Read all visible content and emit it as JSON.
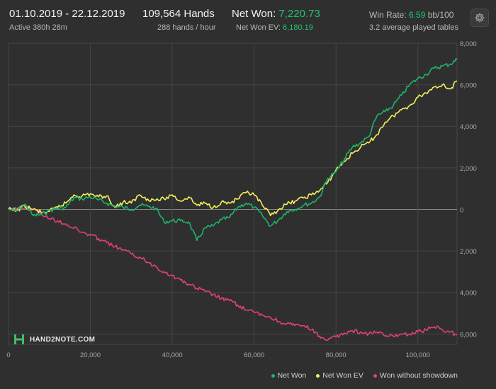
{
  "header": {
    "date_range": "01.10.2019 - 22.12.2019",
    "active": "Active 380h 28m",
    "hands": "109,564 Hands",
    "hands_rate": "288 hands / hour",
    "net_won_label": "Net Won: ",
    "net_won_value": "7,220.73",
    "net_won_ev_label": "Net Won  EV: ",
    "net_won_ev_value": "6,180.19",
    "win_rate_label": "Win Rate: ",
    "win_rate_value": "6.59",
    "win_rate_unit": " bb/100",
    "tables": "3.2 average played tables",
    "settings_icon": "gear-icon"
  },
  "logo": {
    "text": "HAND2NOTE.COM"
  },
  "colors": {
    "net_won": "#1fb36a",
    "net_won_ev": "#f4f05a",
    "won_without_showdown": "#e0407a",
    "accent": "#1fc46e"
  },
  "chart_data": {
    "type": "line",
    "title": "",
    "xlabel": "",
    "ylabel": "",
    "xlim": [
      0,
      109564
    ],
    "ylim": [
      -6500,
      8000
    ],
    "grid": true,
    "legend": "bottom-right",
    "x_ticks": [
      0,
      20000,
      40000,
      60000,
      80000,
      100000
    ],
    "x_tick_labels": [
      "0",
      "20,000",
      "40,000",
      "60,000",
      "80,000",
      "100,000"
    ],
    "y_ticks": [
      8000,
      6000,
      4000,
      2000,
      0,
      -2000,
      -4000,
      -6000
    ],
    "y_tick_labels": [
      "8,000",
      "6,000",
      "4,000",
      "2,000",
      "0",
      "2,000",
      "4,000",
      "6,000"
    ],
    "series": [
      {
        "name": "Net Won",
        "color": "#1fb36a",
        "x": [
          0,
          2000,
          4000,
          6000,
          8000,
          10000,
          12000,
          14000,
          16000,
          18000,
          20000,
          22000,
          24000,
          26000,
          28000,
          30000,
          32000,
          34000,
          36000,
          38000,
          40000,
          42000,
          44000,
          46000,
          48000,
          50000,
          52000,
          54000,
          56000,
          58000,
          60000,
          62000,
          64000,
          66000,
          68000,
          70000,
          72000,
          74000,
          76000,
          78000,
          80000,
          82000,
          84000,
          86000,
          88000,
          90000,
          92000,
          94000,
          96000,
          98000,
          100000,
          102000,
          104000,
          106000,
          108000,
          109564
        ],
        "y": [
          0,
          -80,
          250,
          -300,
          -250,
          -50,
          50,
          100,
          550,
          500,
          600,
          450,
          300,
          150,
          100,
          0,
          200,
          150,
          50,
          -600,
          -550,
          -550,
          -600,
          -1500,
          -900,
          -800,
          -500,
          -400,
          100,
          300,
          100,
          -300,
          -800,
          -500,
          -100,
          0,
          200,
          300,
          600,
          1500,
          1800,
          2400,
          3000,
          3200,
          3500,
          4500,
          4700,
          5000,
          5500,
          6000,
          6300,
          6500,
          6800,
          6900,
          7000,
          7220.73
        ]
      },
      {
        "name": "Net Won  EV",
        "color": "#f4f05a",
        "x": [
          0,
          2000,
          4000,
          6000,
          8000,
          10000,
          12000,
          14000,
          16000,
          18000,
          20000,
          22000,
          24000,
          26000,
          28000,
          30000,
          32000,
          34000,
          36000,
          38000,
          40000,
          42000,
          44000,
          46000,
          48000,
          50000,
          52000,
          54000,
          56000,
          58000,
          60000,
          62000,
          64000,
          66000,
          68000,
          70000,
          72000,
          74000,
          76000,
          78000,
          80000,
          82000,
          84000,
          86000,
          88000,
          90000,
          92000,
          94000,
          96000,
          98000,
          100000,
          102000,
          104000,
          106000,
          108000,
          109564
        ],
        "y": [
          0,
          -50,
          150,
          0,
          -150,
          -100,
          100,
          300,
          700,
          650,
          750,
          600,
          650,
          100,
          350,
          300,
          700,
          500,
          450,
          500,
          700,
          400,
          600,
          200,
          300,
          100,
          350,
          300,
          500,
          800,
          700,
          200,
          -300,
          0,
          250,
          400,
          550,
          700,
          900,
          1300,
          1900,
          2300,
          2700,
          3000,
          3200,
          3600,
          4200,
          4500,
          4800,
          5000,
          5400,
          5600,
          5900,
          6000,
          5800,
          6180.19
        ]
      },
      {
        "name": "Won without showdown",
        "color": "#e0407a",
        "x": [
          0,
          2000,
          4000,
          6000,
          8000,
          10000,
          12000,
          14000,
          16000,
          18000,
          20000,
          22000,
          24000,
          26000,
          28000,
          30000,
          32000,
          34000,
          36000,
          38000,
          40000,
          42000,
          44000,
          46000,
          48000,
          50000,
          52000,
          54000,
          56000,
          58000,
          60000,
          62000,
          64000,
          66000,
          68000,
          70000,
          72000,
          74000,
          76000,
          78000,
          80000,
          82000,
          84000,
          86000,
          88000,
          90000,
          92000,
          94000,
          96000,
          98000,
          100000,
          102000,
          104000,
          106000,
          108000,
          109564
        ],
        "y": [
          0,
          0,
          100,
          0,
          -200,
          -450,
          -550,
          -700,
          -900,
          -1100,
          -1250,
          -1400,
          -1600,
          -1800,
          -1950,
          -2150,
          -2300,
          -2550,
          -2750,
          -3000,
          -3200,
          -3400,
          -3600,
          -3800,
          -3950,
          -4100,
          -4300,
          -4400,
          -4600,
          -4850,
          -4950,
          -5100,
          -5200,
          -5400,
          -5500,
          -5600,
          -5600,
          -5800,
          -6100,
          -6300,
          -6150,
          -5950,
          -5850,
          -5900,
          -6000,
          -5900,
          -6100,
          -6100,
          -6000,
          -6000,
          -5900,
          -5800,
          -5650,
          -5800,
          -5900,
          -6050
        ]
      }
    ]
  }
}
